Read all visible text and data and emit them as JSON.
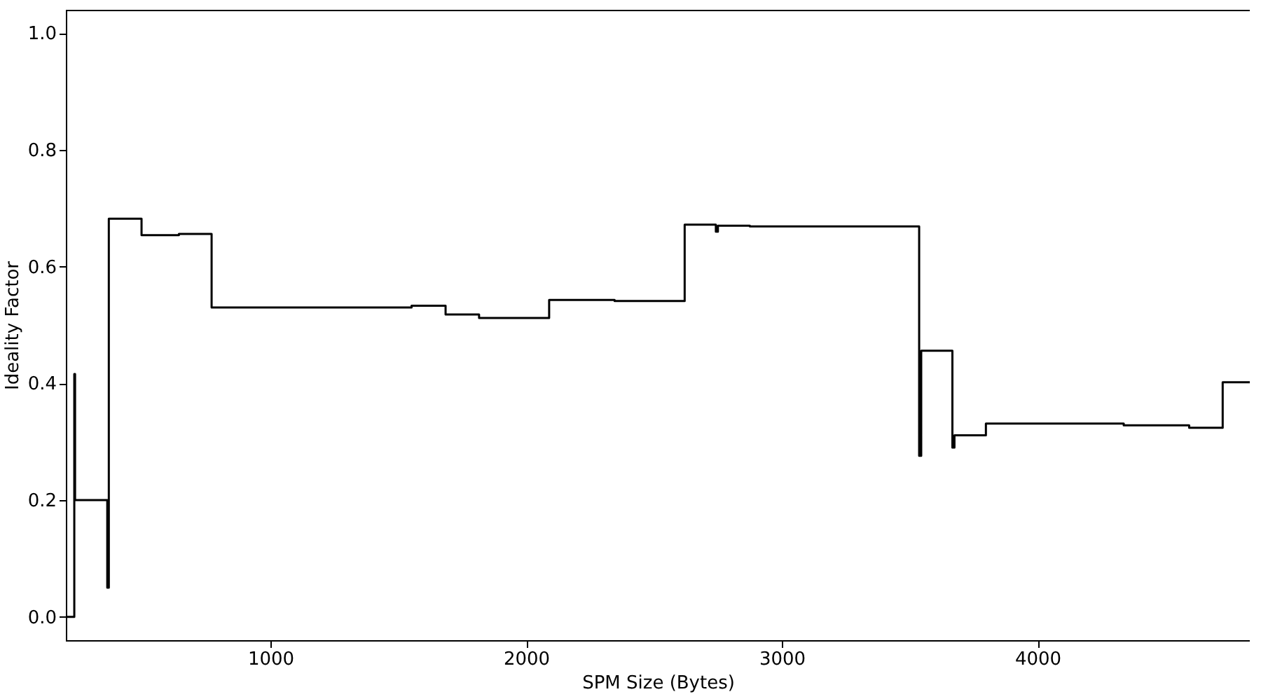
{
  "chart_data": {
    "type": "step",
    "xlabel": "SPM Size (Bytes)",
    "ylabel": "Ideality Factor",
    "x": [
      200,
      233,
      236,
      362,
      368,
      496,
      642,
      770,
      1552,
      1685,
      1816,
      2090,
      2346,
      2620,
      2742,
      2750,
      2875,
      3537,
      3545,
      3667,
      3675,
      3798,
      4337,
      4593,
      4724,
      4830
    ],
    "series": [
      {
        "color": "#000000",
        "values": [
          0,
          0.416,
          0.2,
          0.05,
          0.682,
          0.654,
          0.656,
          0.53,
          0.533,
          0.518,
          0.512,
          0.543,
          0.541,
          0.672,
          0.66,
          0.67,
          0.669,
          0.276,
          0.456,
          0.29,
          0.311,
          0.331,
          0.328,
          0.324,
          0.402,
          0.402
        ]
      }
    ],
    "xlim": [
      200,
      4830
    ],
    "ylim": [
      -0.04,
      1.04
    ],
    "xticks": [
      1000,
      2000,
      3000,
      4000
    ],
    "yticks": [
      {
        "value": 0,
        "label": "0.0"
      },
      {
        "value": 0.2,
        "label": "0.2"
      },
      {
        "value": 0.4,
        "label": "0.4"
      },
      {
        "value": 0.6,
        "label": "0.6"
      },
      {
        "value": 0.8,
        "label": "0.8"
      },
      {
        "value": 1,
        "label": "1.0"
      }
    ],
    "grid": false
  }
}
